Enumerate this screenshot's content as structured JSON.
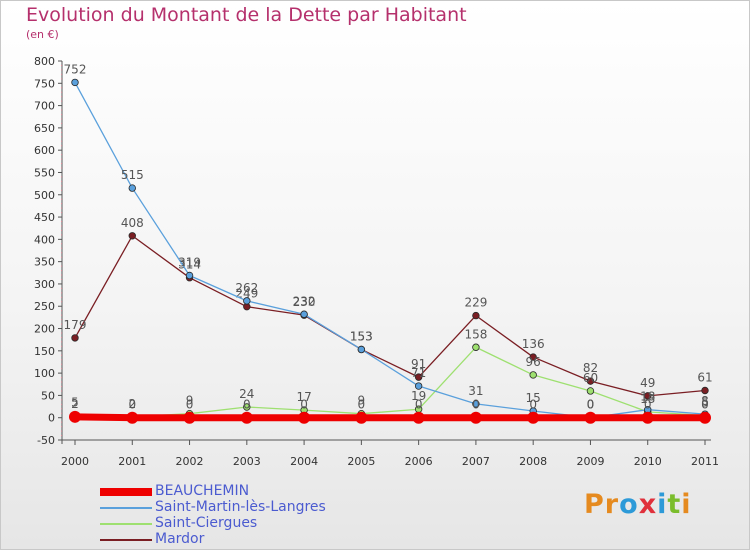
{
  "title": "Evolution du Montant de la Dette par Habitant",
  "subtitle": "(en €)",
  "logo": [
    "P",
    "r",
    "o",
    "x",
    "i",
    "t",
    "i"
  ],
  "logo_colors": [
    "#e58a1f",
    "#e58a1f",
    "#2d9ad8",
    "#e0303b",
    "#2d9ad8",
    "#7bbd2c",
    "#e58a1f"
  ],
  "chart_data": {
    "type": "line",
    "x": [
      "2000",
      "2001",
      "2002",
      "2003",
      "2004",
      "2005",
      "2006",
      "2007",
      "2008",
      "2009",
      "2010",
      "2011"
    ],
    "ylim": [
      -50,
      800
    ],
    "yticks": [
      -50,
      0,
      50,
      100,
      150,
      200,
      250,
      300,
      350,
      400,
      450,
      500,
      550,
      600,
      650,
      700,
      750,
      800
    ],
    "grid": false,
    "legend_position": "bottom-left",
    "series": [
      {
        "name": "BEAUCHEMIN",
        "color": "#ee0000",
        "values": [
          2,
          0,
          0,
          0,
          0,
          0,
          0,
          0,
          0,
          0,
          0,
          0
        ]
      },
      {
        "name": "Saint-Martin-lès-Langres",
        "color": "#5aa0dc",
        "values": [
          752,
          515,
          319,
          262,
          232,
          153,
          71,
          31,
          15,
          0,
          18,
          8
        ]
      },
      {
        "name": "Saint-Ciergues",
        "color": "#9ee070",
        "values": [
          5,
          2,
          9,
          24,
          17,
          9,
          19,
          158,
          96,
          60,
          13,
          5
        ]
      },
      {
        "name": "Mardor",
        "color": "#7a1e23",
        "values": [
          179,
          408,
          314,
          249,
          230,
          153,
          91,
          229,
          136,
          82,
          49,
          61
        ]
      }
    ]
  }
}
